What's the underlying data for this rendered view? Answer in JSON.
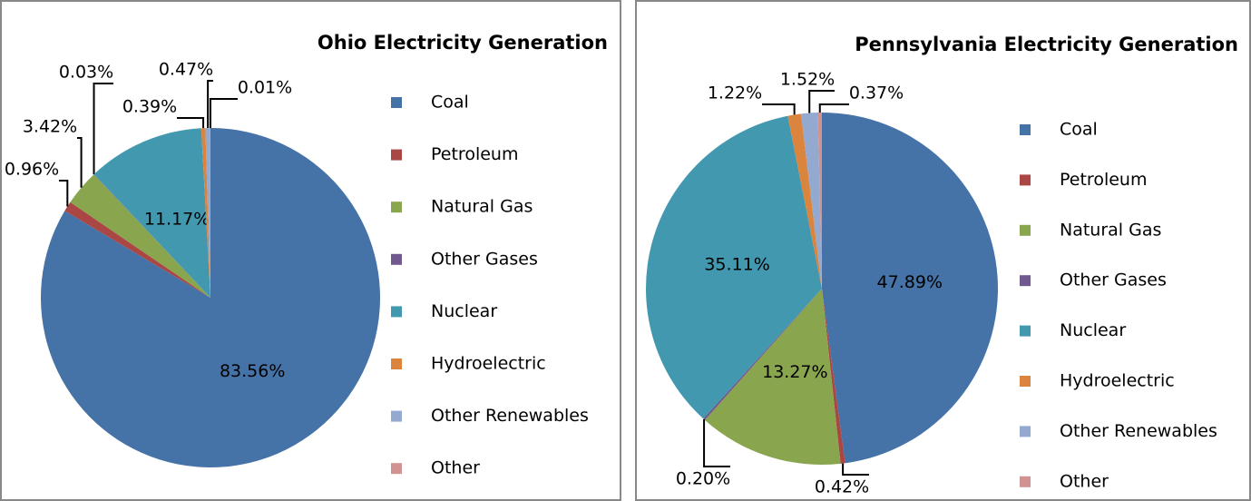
{
  "chart_data": [
    {
      "type": "pie",
      "title": "Ohio Electricity Generation",
      "categories": [
        "Coal",
        "Petroleum",
        "Natural Gas",
        "Other Gases",
        "Nuclear",
        "Hydroelectric",
        "Other Renewables",
        "Other"
      ],
      "values": [
        83.56,
        0.96,
        3.42,
        0.03,
        11.17,
        0.39,
        0.47,
        0.01
      ],
      "value_labels": [
        "83.56%",
        "0.96%",
        "3.42%",
        "0.03%",
        "11.17%",
        "0.39%",
        "0.47%",
        "0.01%"
      ],
      "colors": [
        "#4572a7",
        "#aa4643",
        "#89a54e",
        "#71588f",
        "#4198af",
        "#db843d",
        "#93a9cf",
        "#d19392"
      ]
    },
    {
      "type": "pie",
      "title": "Pennsylvania Electricity Generation",
      "categories": [
        "Coal",
        "Petroleum",
        "Natural Gas",
        "Other Gases",
        "Nuclear",
        "Hydroelectric",
        "Other Renewables",
        "Other"
      ],
      "values": [
        47.89,
        0.42,
        13.27,
        0.2,
        35.11,
        1.22,
        1.52,
        0.37
      ],
      "value_labels": [
        "47.89%",
        "0.42%",
        "13.27%",
        "0.20%",
        "35.11%",
        "1.22%",
        "1.52%",
        "0.37%"
      ],
      "colors": [
        "#4572a7",
        "#aa4643",
        "#89a54e",
        "#71588f",
        "#4198af",
        "#db843d",
        "#93a9cf",
        "#d19392"
      ]
    }
  ]
}
